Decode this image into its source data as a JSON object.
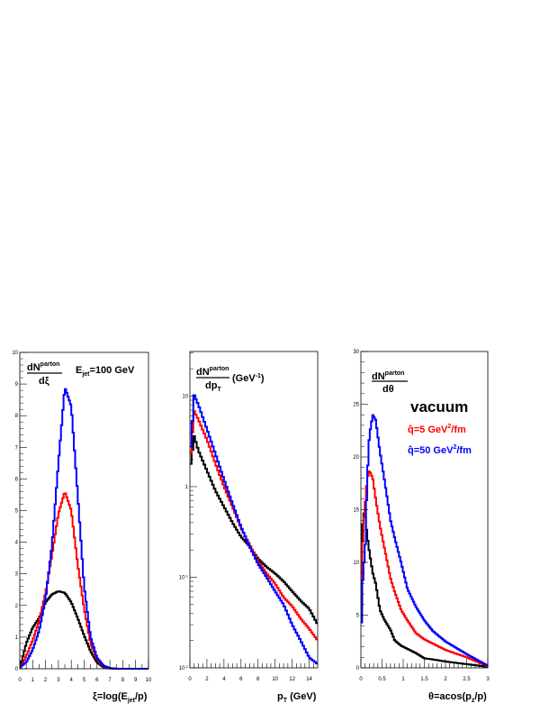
{
  "colors": {
    "vacuum": "#000000",
    "q5": "#ff0000",
    "q50": "#0000ff"
  },
  "chart_data": [
    {
      "type": "line",
      "style": "step histogram",
      "ylabel_num": "dN",
      "ylabel_sup": "parton",
      "ylabel_den": "dξ",
      "annotation_pre": "E",
      "annotation_sub": "jet",
      "annotation_post": "=100 GeV",
      "xlabel_pre": "ξ=log(E",
      "xlabel_sub": "jet",
      "xlabel_post": "/p)",
      "xlim": [
        0,
        10
      ],
      "ylim": [
        0,
        10
      ],
      "yscale": "linear",
      "xticks": [
        "0",
        "1",
        "2",
        "3",
        "4",
        "5",
        "6",
        "7",
        "8",
        "9",
        "10"
      ],
      "yticks": [
        "0",
        "1",
        "2",
        "3",
        "4",
        "5",
        "6",
        "7",
        "8",
        "9",
        "10"
      ],
      "x": [
        0,
        0.5,
        1,
        1.5,
        2,
        2.5,
        3,
        3.5,
        4,
        4.5,
        5,
        5.5,
        6,
        6.5,
        7,
        7.5,
        8,
        10
      ],
      "series": [
        {
          "key": "vacuum",
          "values": [
            0,
            0.8,
            1.3,
            1.6,
            2.1,
            2.35,
            2.45,
            2.4,
            2.1,
            1.6,
            1.05,
            0.55,
            0.2,
            0.05,
            0.01,
            0,
            0,
            0
          ]
        },
        {
          "key": "q5",
          "values": [
            0,
            0.4,
            0.9,
            1.5,
            2.4,
            3.6,
            4.9,
            5.6,
            5.0,
            3.3,
            1.9,
            0.8,
            0.3,
            0.08,
            0.02,
            0,
            0,
            0
          ]
        },
        {
          "key": "q50",
          "values": [
            0.05,
            0.2,
            0.6,
            1.2,
            2.2,
            3.9,
            6.5,
            8.9,
            8.3,
            5.5,
            2.6,
            1.0,
            0.35,
            0.1,
            0.02,
            0,
            0,
            0
          ]
        }
      ]
    },
    {
      "type": "line",
      "style": "step histogram",
      "ylabel_num": "dN",
      "ylabel_sup": "parton",
      "ylabel_den": "dp",
      "ylabel_den_sub": "T",
      "ylabel_unit_pre": "(GeV",
      "ylabel_unit_sup": "-1",
      "ylabel_unit_post": ")",
      "xlabel_pre": "p",
      "xlabel_sub": "T",
      "xlabel_post": " (GeV)",
      "xlim": [
        0,
        15
      ],
      "ylim": [
        0.01,
        31
      ],
      "yscale": "log",
      "xticks": [
        "0",
        "2",
        "4",
        "6",
        "8",
        "10",
        "12",
        "14"
      ],
      "yticks": [
        {
          "v": 0.01,
          "b": "10",
          "e": "-2"
        },
        {
          "v": 0.1,
          "b": "10",
          "e": "-1"
        },
        {
          "v": 1,
          "b": "1",
          "e": ""
        },
        {
          "v": 10,
          "b": "10",
          "e": ""
        }
      ],
      "x": [
        0,
        0.5,
        1,
        2,
        3,
        4,
        5,
        6,
        7,
        8,
        9,
        10,
        11,
        12,
        13,
        14,
        15
      ],
      "series": [
        {
          "key": "vacuum",
          "values": [
            1.5,
            3.6,
            2.5,
            1.5,
            0.9,
            0.6,
            0.4,
            0.28,
            0.22,
            0.16,
            0.13,
            0.11,
            0.09,
            0.07,
            0.055,
            0.045,
            0.03
          ]
        },
        {
          "key": "q5",
          "values": [
            1.8,
            6.8,
            5.5,
            3.3,
            1.8,
            1.0,
            0.6,
            0.35,
            0.23,
            0.15,
            0.11,
            0.085,
            0.06,
            0.048,
            0.035,
            0.027,
            0.02
          ]
        },
        {
          "key": "q50",
          "values": [
            2,
            10.2,
            8,
            4.3,
            2.3,
            1.2,
            0.65,
            0.36,
            0.22,
            0.14,
            0.1,
            0.07,
            0.05,
            0.03,
            0.02,
            0.013,
            0.011
          ]
        }
      ]
    },
    {
      "type": "line",
      "style": "step histogram",
      "ylabel_num": "dN",
      "ylabel_sup": "parton",
      "ylabel_den": "dθ",
      "xlabel_pre": "θ=acos(p",
      "xlabel_sub": "z",
      "xlabel_post": "/p)",
      "xlim": [
        0,
        3
      ],
      "ylim": [
        0,
        30
      ],
      "yscale": "linear",
      "xticks": [
        "0",
        "0.5",
        "1",
        "1.5",
        "2",
        "2.5",
        "3"
      ],
      "yticks": [
        "0",
        "5",
        "10",
        "15",
        "20",
        "25",
        "30"
      ],
      "legend": {
        "vacuum": "vacuum",
        "q5_pre": "q̂=5 GeV",
        "q5_sup": "2",
        "q5_post": "/fm",
        "q50_pre": "q̂=50 GeV",
        "q50_sup": "2",
        "q50_post": "/fm"
      },
      "x": [
        0,
        0.05,
        0.1,
        0.15,
        0.2,
        0.28,
        0.35,
        0.45,
        0.55,
        0.7,
        0.8,
        0.95,
        1.1,
        1.3,
        1.5,
        1.7,
        2,
        2.5,
        3
      ],
      "series": [
        {
          "key": "vacuum",
          "values": [
            3,
            14.8,
            14.5,
            12.5,
            11,
            9,
            8,
            5.5,
            4.6,
            3.6,
            2.6,
            2.1,
            1.8,
            1.4,
            0.9,
            0.8,
            0.6,
            0.35,
            0.1
          ]
        },
        {
          "key": "q5",
          "values": [
            2.5,
            13,
            15.5,
            18,
            18.7,
            18,
            16,
            13.5,
            11.5,
            8.5,
            7.2,
            5.5,
            4.5,
            3.3,
            2.7,
            2.3,
            1.7,
            1.0,
            0.15
          ]
        },
        {
          "key": "q50",
          "values": [
            2.3,
            9,
            11,
            18,
            22,
            24,
            23.5,
            20.5,
            18,
            14,
            12.3,
            10,
            7.5,
            5.8,
            4.5,
            3.5,
            2.5,
            1.3,
            0.2
          ]
        }
      ]
    }
  ]
}
